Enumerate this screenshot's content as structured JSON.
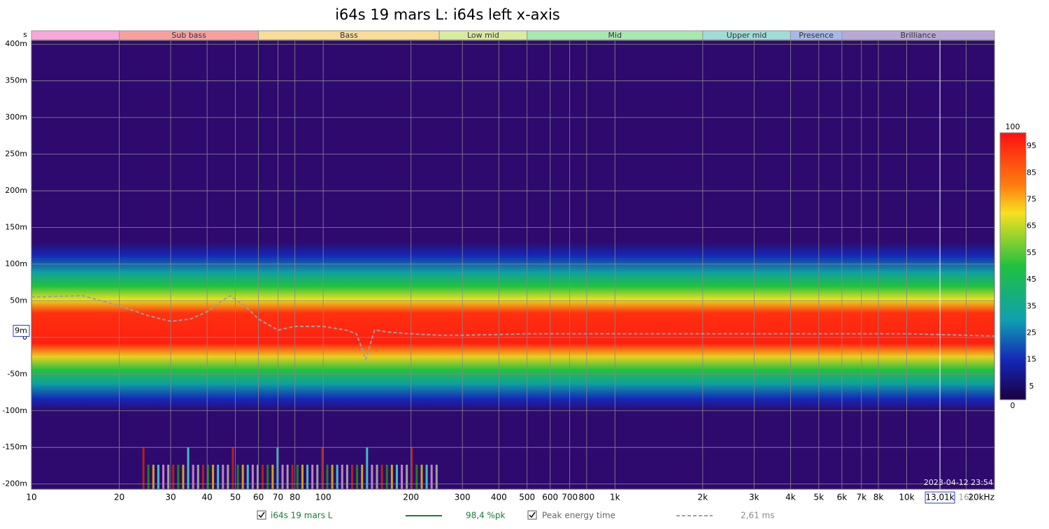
{
  "chart_data": {
    "type": "spectrogram",
    "title": "i64s 19 mars L: i64s left x-axis",
    "x_scale": "log",
    "xlim": [
      10,
      20000
    ],
    "xticks": [
      10,
      20,
      30,
      40,
      50,
      60,
      70,
      80,
      100,
      200,
      300,
      400,
      500,
      600,
      700,
      800,
      {
        "value": 1000,
        "label": "1k"
      },
      {
        "value": 2000,
        "label": "2k"
      },
      {
        "value": 3000,
        "label": "3k"
      },
      {
        "value": 4000,
        "label": "4k"
      },
      {
        "value": 5000,
        "label": "5k"
      },
      {
        "value": 6000,
        "label": "6k"
      },
      {
        "value": 7000,
        "label": "7k"
      },
      {
        "value": 8000,
        "label": "8k"
      },
      {
        "value": 10000,
        "label": "10k"
      },
      {
        "value": 16000,
        "label": "16k"
      },
      {
        "value": 20000,
        "label": "20kHz"
      }
    ],
    "y_unit": "s",
    "ylim": [
      -0.207,
      0.405
    ],
    "yticks": [
      {
        "value": 0.4,
        "label": "400m"
      },
      {
        "value": 0.35,
        "label": "350m"
      },
      {
        "value": 0.3,
        "label": "300m"
      },
      {
        "value": 0.25,
        "label": "250m"
      },
      {
        "value": 0.2,
        "label": "200m"
      },
      {
        "value": 0.15,
        "label": "150m"
      },
      {
        "value": 0.1,
        "label": "100m"
      },
      {
        "value": 0.05,
        "label": "50m"
      },
      0,
      {
        "value": -0.05,
        "label": "-50m"
      },
      {
        "value": -0.1,
        "label": "-100m"
      },
      {
        "value": -0.15,
        "label": "-150m"
      },
      {
        "value": -0.2,
        "label": "-200m"
      }
    ],
    "grid": true,
    "bands": [
      {
        "start": 10,
        "end": 20,
        "color": "#f8a8d8"
      },
      {
        "start": 20,
        "end": 60,
        "label": "Sub bass",
        "color": "#f8a0a0"
      },
      {
        "start": 60,
        "end": 250,
        "label": "Bass",
        "color": "#f8dc98"
      },
      {
        "start": 250,
        "end": 500,
        "label": "Low mid",
        "color": "#d8eca0"
      },
      {
        "start": 500,
        "end": 2000,
        "label": "Mid",
        "color": "#a8e8b0"
      },
      {
        "start": 2000,
        "end": 4000,
        "label": "Upper mid",
        "color": "#a0dcd8"
      },
      {
        "start": 4000,
        "end": 6000,
        "label": "Presence",
        "color": "#a8b8e8"
      },
      {
        "start": 6000,
        "end": 20000,
        "label": "Brilliance",
        "color": "#b8a8d8"
      }
    ],
    "colorbar": {
      "lim": [
        0,
        100
      ],
      "ticks": [
        100,
        95,
        85,
        75,
        65,
        55,
        45,
        35,
        25,
        15,
        5,
        0
      ]
    },
    "series": [
      {
        "name": "Peak energy time",
        "color": "#a0a0a0",
        "x": [
          10,
          15,
          20,
          25,
          30,
          35,
          40,
          45,
          48,
          55,
          60,
          70,
          80,
          100,
          120,
          130,
          140,
          150,
          170,
          200,
          250,
          300,
          400,
          500,
          700,
          1000,
          2000,
          5000,
          10000,
          20000
        ],
        "values": [
          0.055,
          0.057,
          0.043,
          0.03,
          0.022,
          0.025,
          0.035,
          0.05,
          0.057,
          0.04,
          0.025,
          0.01,
          0.015,
          0.015,
          0.01,
          0.005,
          -0.03,
          0.01,
          0.007,
          0.005,
          0.003,
          0.003,
          0.004,
          0.005,
          0.005,
          0.005,
          0.005,
          0.005,
          0.005,
          0.002
        ]
      }
    ],
    "cursor": {
      "x": 13010,
      "x_label": "13,01k",
      "y": 0.009,
      "y_label": "9m"
    },
    "timestamp": "2023-04-12 23:54",
    "legend": [
      {
        "label": "i64s 19 mars L",
        "color": "#1a7a3a",
        "reading": "98,4 %pk"
      },
      {
        "label": "Peak energy time",
        "color": "#a0a0a0",
        "reading": "2,61 ms"
      }
    ]
  }
}
